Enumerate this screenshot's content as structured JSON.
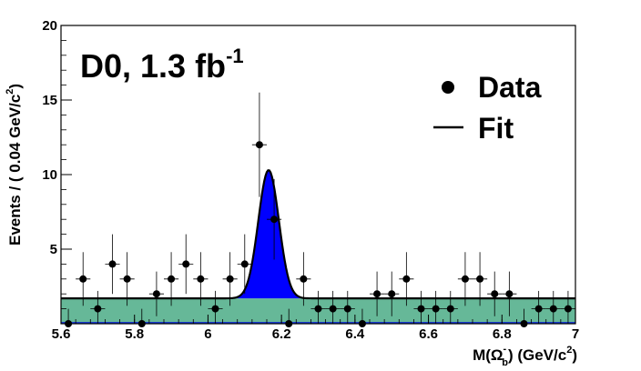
{
  "chart_data": {
    "type": "scatter",
    "title": "",
    "annotation": {
      "main": "D0, 1.3 fb",
      "sup": "-1"
    },
    "xlabel": {
      "pre": "M(Ω",
      "sub": "b",
      "sup": "-",
      "post": ") (GeV/c",
      "post_sup": "2",
      "end": ")"
    },
    "ylabel": {
      "pre": "Events / ( 0.04 GeV/c",
      "sup": "2",
      "end": ")"
    },
    "xlim": [
      5.6,
      7.0
    ],
    "ylim": [
      0,
      20
    ],
    "xticks": [
      "5.6",
      "5.8",
      "6",
      "6.2",
      "6.4",
      "6.6",
      "6.8",
      "7"
    ],
    "yticks": [
      "5",
      "10",
      "15",
      "20"
    ],
    "legend": {
      "position": "top-right",
      "entries": [
        "Data",
        "Fit"
      ]
    },
    "series": [
      {
        "name": "Data",
        "x": [
          5.62,
          5.66,
          5.7,
          5.74,
          5.78,
          5.82,
          5.86,
          5.9,
          5.94,
          5.98,
          6.02,
          6.06,
          6.1,
          6.14,
          6.18,
          6.22,
          6.26,
          6.3,
          6.34,
          6.38,
          6.42,
          6.46,
          6.5,
          6.54,
          6.58,
          6.62,
          6.66,
          6.7,
          6.74,
          6.78,
          6.82,
          6.86,
          6.9,
          6.94,
          6.98
        ],
        "y": [
          0,
          3,
          1,
          4,
          3,
          0,
          2,
          3,
          4,
          3,
          1,
          3,
          4,
          12,
          7,
          0,
          3,
          1,
          1,
          1,
          0,
          2,
          2,
          3,
          1,
          1,
          1,
          3,
          3,
          2,
          2,
          0,
          1,
          1,
          1
        ],
        "yerr": [
          1.0,
          1.8,
          1.2,
          2.0,
          1.8,
          1.0,
          1.5,
          1.8,
          2.0,
          1.8,
          1.2,
          1.8,
          2.0,
          3.5,
          2.7,
          1.0,
          1.8,
          1.2,
          1.2,
          1.2,
          1.0,
          1.5,
          1.5,
          1.8,
          1.2,
          1.2,
          1.2,
          1.8,
          1.8,
          1.5,
          1.5,
          1.0,
          1.2,
          1.2,
          1.2
        ]
      },
      {
        "name": "Fit",
        "type": "line",
        "background": 1.7,
        "peak_mean": 6.165,
        "peak_sigma": 0.028,
        "peak_height": 8.6,
        "line_color": "#000000",
        "signal_fill": "#0000ff",
        "background_fill": "#66b898",
        "baseline_color": "#1a3ccc"
      }
    ]
  }
}
